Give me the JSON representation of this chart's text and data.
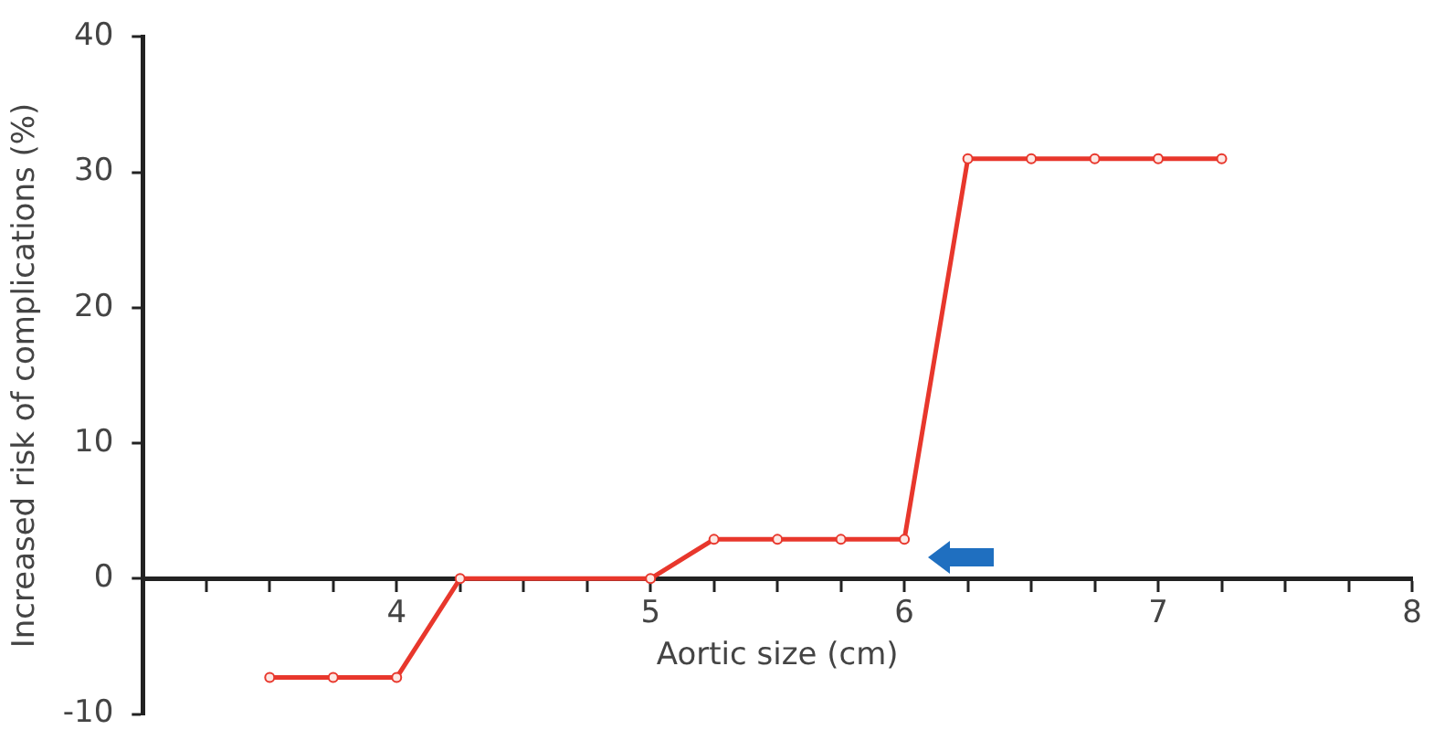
{
  "chart_data": {
    "type": "line",
    "xlabel": "Aortic size (cm)",
    "ylabel": "Increased risk of complications (%)",
    "x": [
      3.5,
      3.75,
      4,
      4.25,
      5,
      5.25,
      5.5,
      5.75,
      6,
      6.25,
      6.5,
      6.75,
      7,
      7.25
    ],
    "series": [
      {
        "color": "#e8372c",
        "values": [
          -7.3,
          -7.3,
          -7.3,
          0,
          0,
          2.9,
          2.9,
          2.9,
          2.9,
          31,
          31,
          31,
          31,
          31
        ]
      }
    ],
    "xlim": [
      3,
      8
    ],
    "xticks": [
      {
        "value": 3.25,
        "label": null
      },
      {
        "value": 3.5,
        "label": null
      },
      {
        "value": 3.75,
        "label": null
      },
      4,
      {
        "value": 4.25,
        "label": null
      },
      {
        "value": 4.5,
        "label": null
      },
      {
        "value": 4.75,
        "label": null
      },
      5,
      {
        "value": 5.25,
        "label": null
      },
      {
        "value": 5.5,
        "label": null
      },
      {
        "value": 5.75,
        "label": null
      },
      6,
      {
        "value": 6.25,
        "label": null
      },
      {
        "value": 6.5,
        "label": null
      },
      {
        "value": 6.75,
        "label": null
      },
      7,
      {
        "value": 7.25,
        "label": null
      },
      {
        "value": 7.5,
        "label": null
      },
      {
        "value": 7.75,
        "label": null
      },
      8
    ],
    "ylim": [
      -10,
      40
    ],
    "yticks": [
      -10,
      0,
      10,
      20,
      30,
      40
    ],
    "grid": false,
    "legend": false,
    "marker": "circle",
    "line_style": "solid"
  }
}
